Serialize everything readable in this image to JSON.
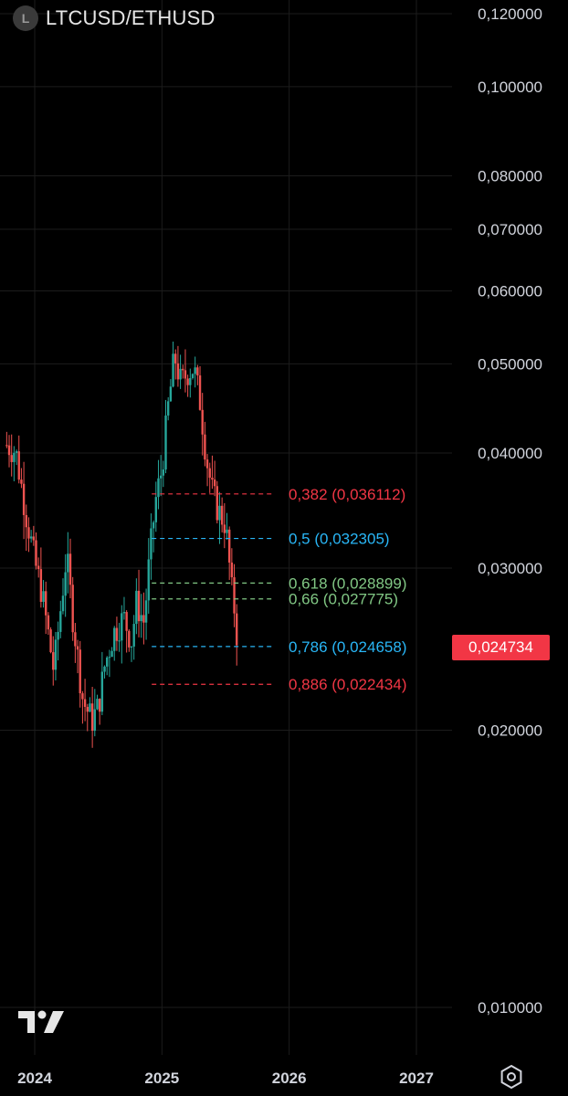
{
  "header": {
    "logo_letter": "L",
    "symbol": "LTCUSD/ETHUSD"
  },
  "last_price": "0,024734",
  "chart_data": {
    "type": "candlestick",
    "scale": "log",
    "ylim": [
      0.0095,
      0.1255
    ],
    "y_ticks": [
      {
        "value": 0.12,
        "label": "0,120000"
      },
      {
        "value": 0.1,
        "label": "0,100000"
      },
      {
        "value": 0.08,
        "label": "0,080000"
      },
      {
        "value": 0.07,
        "label": "0,070000"
      },
      {
        "value": 0.06,
        "label": "0,060000"
      },
      {
        "value": 0.05,
        "label": "0,050000"
      },
      {
        "value": 0.04,
        "label": "0,040000"
      },
      {
        "value": 0.03,
        "label": "0,030000"
      },
      {
        "value": 0.02,
        "label": "0,020000"
      },
      {
        "value": 0.01,
        "label": "0,010000"
      }
    ],
    "x_ticks": [
      {
        "value": 2024.0,
        "label": "2024"
      },
      {
        "value": 2025.0,
        "label": "2025"
      },
      {
        "value": 2026.0,
        "label": "2026"
      },
      {
        "value": 2027.0,
        "label": "2027"
      }
    ],
    "xlim": [
      2023.78,
      2027.4
    ],
    "colors": {
      "up": "#26a69a",
      "down": "#ef5350",
      "grid": "#1c1c1c",
      "axis_text": "#d1d4dc"
    },
    "price_path": [
      [
        2023.78,
        0.0408
      ],
      [
        2023.85,
        0.0402
      ],
      [
        2023.93,
        0.0345
      ],
      [
        2024.0,
        0.0305
      ],
      [
        2024.05,
        0.0285
      ],
      [
        2024.1,
        0.0258
      ],
      [
        2024.15,
        0.0232
      ],
      [
        2024.2,
        0.0268
      ],
      [
        2024.25,
        0.031
      ],
      [
        2024.3,
        0.0265
      ],
      [
        2024.33,
        0.0245
      ],
      [
        2024.38,
        0.0215
      ],
      [
        2024.45,
        0.0205
      ],
      [
        2024.5,
        0.0212
      ],
      [
        2024.55,
        0.0235
      ],
      [
        2024.62,
        0.0255
      ],
      [
        2024.7,
        0.0265
      ],
      [
        2024.76,
        0.025
      ],
      [
        2024.8,
        0.0275
      ],
      [
        2024.86,
        0.0262
      ],
      [
        2024.9,
        0.0305
      ],
      [
        2024.95,
        0.0355
      ],
      [
        2025.0,
        0.0385
      ],
      [
        2025.05,
        0.045
      ],
      [
        2025.1,
        0.051
      ],
      [
        2025.15,
        0.0475
      ],
      [
        2025.2,
        0.049
      ],
      [
        2025.25,
        0.0495
      ],
      [
        2025.3,
        0.0455
      ],
      [
        2025.35,
        0.0395
      ],
      [
        2025.4,
        0.036
      ],
      [
        2025.45,
        0.0345
      ],
      [
        2025.5,
        0.0335
      ],
      [
        2025.55,
        0.0282
      ],
      [
        2025.58,
        0.0265
      ],
      [
        2025.6,
        0.024734
      ]
    ],
    "fib_levels": [
      {
        "ratio": "0,382",
        "price": 0.036112,
        "label": "0,382 (0,036112)",
        "color": "#f23645"
      },
      {
        "ratio": "0,5",
        "price": 0.032305,
        "label": "0,5 (0,032305)",
        "color": "#29b6f6"
      },
      {
        "ratio": "0,618",
        "price": 0.028899,
        "label": "0,618 (0,028899)",
        "color": "#81c784"
      },
      {
        "ratio": "0,66",
        "price": 0.027775,
        "label": "0,66 (0,027775)",
        "color": "#81c784"
      },
      {
        "ratio": "0,786",
        "price": 0.024658,
        "label": "0,786 (0,024658)",
        "color": "#29b6f6"
      },
      {
        "ratio": "0,886",
        "price": 0.022434,
        "label": "0,886 (0,022434)",
        "color": "#f23645"
      }
    ],
    "fib_range_x": [
      2024.92,
      2025.88
    ]
  },
  "icons": {
    "brand": "tradingview-logo-icon",
    "settings": "settings-hexagon-icon"
  }
}
